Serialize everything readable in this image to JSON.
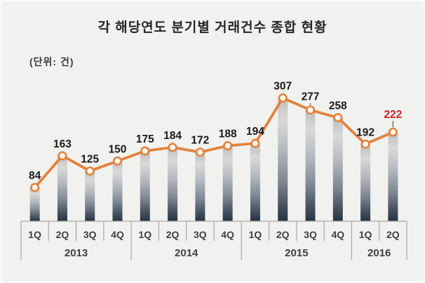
{
  "chart_data": {
    "type": "bar",
    "overlay": "line",
    "title": "각 해당연도 분기별 거래건수 종합 현황",
    "unit_label": "(단위: 건)",
    "categories": [
      "1Q",
      "2Q",
      "3Q",
      "4Q",
      "1Q",
      "2Q",
      "3Q",
      "4Q",
      "1Q",
      "2Q",
      "3Q",
      "4Q",
      "1Q",
      "2Q"
    ],
    "values": [
      84,
      163,
      125,
      150,
      175,
      184,
      172,
      188,
      194,
      307,
      277,
      258,
      192,
      222
    ],
    "year_groups": [
      {
        "label": "2013",
        "span": 4
      },
      {
        "label": "2014",
        "span": 4
      },
      {
        "label": "2015",
        "span": 4
      },
      {
        "label": "2016",
        "span": 2
      }
    ],
    "highlight_index": 13,
    "leader_indices": [
      10,
      13
    ],
    "label_raise": {
      "10": 2,
      "13": 8
    },
    "ylim": [
      0,
      350
    ],
    "grid": false,
    "legend": false,
    "colors": {
      "background": "#f1f1f0",
      "bar_top": "#bdbdbd",
      "bar_light": "#d9d9d9",
      "bar_mid": "#b5b9be",
      "bar_deep": "#7d8692",
      "bar_dark": "#47525f",
      "bar_bottom": "#263340",
      "line": "#e2823e",
      "marker_fill": "#ffffff",
      "data_label": "#1a1a1a",
      "highlight_label": "#cb232a",
      "leader": "#595959",
      "axis": "#a8a8a8",
      "axis_text": "#404040",
      "title_text": "#262626"
    }
  }
}
